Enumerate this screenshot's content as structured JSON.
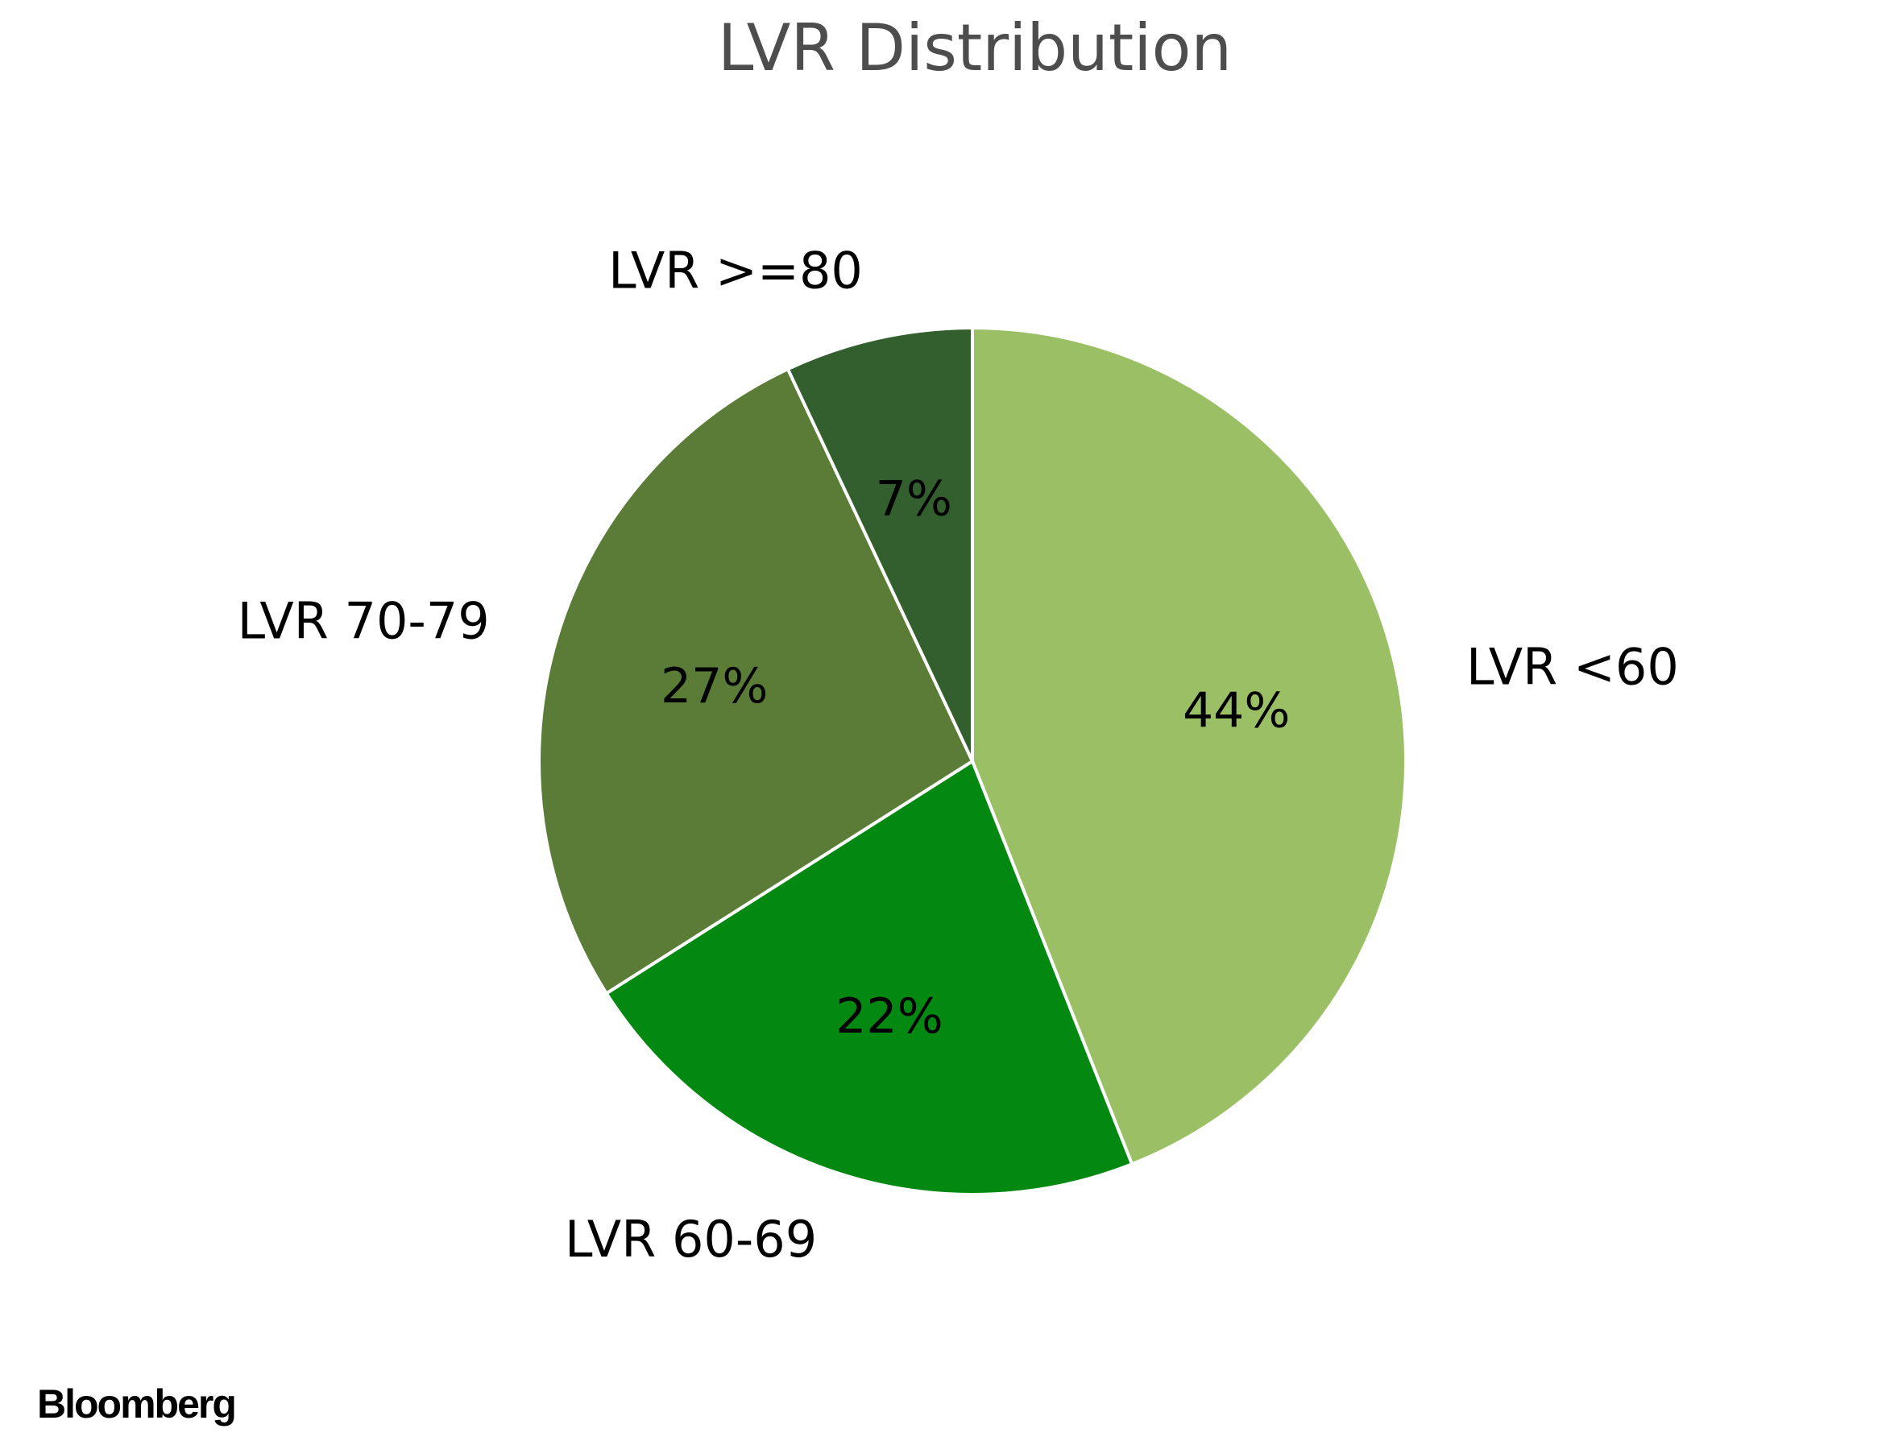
{
  "chart_data": {
    "type": "pie",
    "title": "LVR Distribution",
    "slices": [
      {
        "label": "LVR <60",
        "value": 44,
        "value_label": "44%",
        "color": "#9bbf65"
      },
      {
        "label": "LVR 60-69",
        "value": 22,
        "value_label": "22%",
        "color": "#038811"
      },
      {
        "label": "LVR 70-79",
        "value": 27,
        "value_label": "27%",
        "color": "#5b7c37"
      },
      {
        "label": "LVR >=80",
        "value": 7,
        "value_label": "7%",
        "color": "#335f2f"
      }
    ],
    "start_angle": "12 o'clock",
    "direction": "clockwise",
    "slice_edge_color": "#ffffff"
  },
  "branding": {
    "logo_text": "Bloomberg"
  }
}
